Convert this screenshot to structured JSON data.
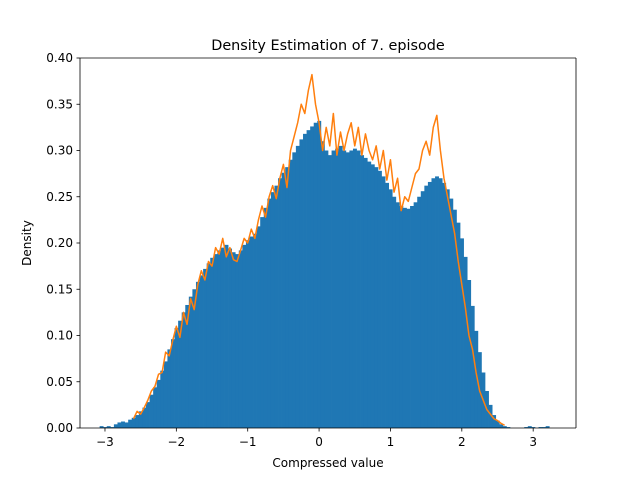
{
  "chart_data": {
    "type": "bar",
    "title": "Density Estimation of 7. episode",
    "xlabel": "Compressed value",
    "ylabel": "Density",
    "xlim": [
      -3.35,
      3.6
    ],
    "ylim": [
      0,
      0.4
    ],
    "xticks": [
      -3,
      -2,
      -1,
      0,
      1,
      2,
      3
    ],
    "xtick_labels": [
      "−3",
      "−2",
      "−1",
      "0",
      "1",
      "2",
      "3"
    ],
    "yticks": [
      0.0,
      0.05,
      0.1,
      0.15,
      0.2,
      0.25,
      0.3,
      0.35,
      0.4
    ],
    "ytick_labels": [
      "0.00",
      "0.05",
      "0.10",
      "0.15",
      "0.20",
      "0.25",
      "0.30",
      "0.35",
      "0.40"
    ],
    "grid": false,
    "colors": {
      "histogram": "#1f77b4",
      "density_line": "#ff7f0e"
    },
    "series": [
      {
        "kind": "histogram",
        "bin_width": 0.05,
        "x": [
          -3.05,
          -3.0,
          -2.95,
          -2.9,
          -2.85,
          -2.8,
          -2.75,
          -2.7,
          -2.65,
          -2.6,
          -2.55,
          -2.5,
          -2.45,
          -2.4,
          -2.35,
          -2.3,
          -2.25,
          -2.2,
          -2.15,
          -2.1,
          -2.05,
          -2.0,
          -1.95,
          -1.9,
          -1.85,
          -1.8,
          -1.75,
          -1.7,
          -1.65,
          -1.6,
          -1.55,
          -1.5,
          -1.45,
          -1.4,
          -1.35,
          -1.3,
          -1.25,
          -1.2,
          -1.15,
          -1.1,
          -1.05,
          -1.0,
          -0.95,
          -0.9,
          -0.85,
          -0.8,
          -0.75,
          -0.7,
          -0.65,
          -0.6,
          -0.55,
          -0.5,
          -0.45,
          -0.4,
          -0.35,
          -0.3,
          -0.25,
          -0.2,
          -0.15,
          -0.1,
          -0.05,
          0.0,
          0.05,
          0.1,
          0.15,
          0.2,
          0.25,
          0.3,
          0.35,
          0.4,
          0.45,
          0.5,
          0.55,
          0.6,
          0.65,
          0.7,
          0.75,
          0.8,
          0.85,
          0.9,
          0.95,
          1.0,
          1.05,
          1.1,
          1.15,
          1.2,
          1.25,
          1.3,
          1.35,
          1.4,
          1.45,
          1.5,
          1.55,
          1.6,
          1.65,
          1.7,
          1.75,
          1.8,
          1.85,
          1.9,
          1.95,
          2.0,
          2.05,
          2.1,
          2.15,
          2.2,
          2.25,
          2.3,
          2.35,
          2.4,
          2.45,
          2.5,
          2.55,
          2.6,
          2.65,
          2.7,
          2.75,
          2.8,
          2.85,
          2.9,
          2.95,
          3.0,
          3.05,
          3.1,
          3.15,
          3.2,
          3.25
        ],
        "values": [
          0.002,
          0.001,
          0.002,
          0.001,
          0.004,
          0.006,
          0.007,
          0.006,
          0.009,
          0.011,
          0.014,
          0.018,
          0.022,
          0.028,
          0.036,
          0.044,
          0.052,
          0.062,
          0.072,
          0.085,
          0.096,
          0.108,
          0.116,
          0.125,
          0.133,
          0.142,
          0.15,
          0.158,
          0.165,
          0.172,
          0.178,
          0.184,
          0.188,
          0.192,
          0.195,
          0.198,
          0.194,
          0.19,
          0.188,
          0.192,
          0.198,
          0.203,
          0.207,
          0.21,
          0.218,
          0.228,
          0.238,
          0.248,
          0.255,
          0.262,
          0.27,
          0.276,
          0.282,
          0.29,
          0.298,
          0.305,
          0.312,
          0.318,
          0.322,
          0.326,
          0.33,
          0.332,
          0.31,
          0.3,
          0.295,
          0.3,
          0.302,
          0.305,
          0.3,
          0.298,
          0.3,
          0.302,
          0.3,
          0.295,
          0.292,
          0.288,
          0.285,
          0.282,
          0.278,
          0.272,
          0.265,
          0.258,
          0.25,
          0.244,
          0.24,
          0.238,
          0.237,
          0.24,
          0.244,
          0.25,
          0.256,
          0.262,
          0.266,
          0.27,
          0.272,
          0.27,
          0.265,
          0.258,
          0.248,
          0.236,
          0.222,
          0.205,
          0.185,
          0.16,
          0.132,
          0.105,
          0.082,
          0.06,
          0.04,
          0.025,
          0.014,
          0.008,
          0.004,
          0.002,
          0.001,
          0.0,
          0.0,
          0.0,
          0.0,
          0.001,
          0.002,
          0.001,
          0.0,
          0.001,
          0.001,
          0.002
        ]
      },
      {
        "kind": "density_line",
        "x": [
          -2.6,
          -2.55,
          -2.5,
          -2.45,
          -2.4,
          -2.35,
          -2.3,
          -2.25,
          -2.2,
          -2.15,
          -2.1,
          -2.05,
          -2.0,
          -1.95,
          -1.9,
          -1.85,
          -1.8,
          -1.75,
          -1.7,
          -1.65,
          -1.6,
          -1.55,
          -1.5,
          -1.45,
          -1.4,
          -1.35,
          -1.3,
          -1.25,
          -1.2,
          -1.15,
          -1.1,
          -1.05,
          -1.0,
          -0.95,
          -0.9,
          -0.85,
          -0.8,
          -0.75,
          -0.7,
          -0.65,
          -0.6,
          -0.55,
          -0.5,
          -0.45,
          -0.4,
          -0.35,
          -0.3,
          -0.25,
          -0.2,
          -0.15,
          -0.1,
          -0.05,
          0.0,
          0.05,
          0.1,
          0.15,
          0.2,
          0.25,
          0.3,
          0.35,
          0.4,
          0.45,
          0.5,
          0.55,
          0.6,
          0.65,
          0.7,
          0.75,
          0.8,
          0.85,
          0.9,
          0.95,
          1.0,
          1.05,
          1.1,
          1.15,
          1.2,
          1.25,
          1.3,
          1.35,
          1.4,
          1.45,
          1.5,
          1.55,
          1.6,
          1.65,
          1.7,
          1.75,
          1.8,
          1.85,
          1.9,
          1.95,
          2.0,
          2.05,
          2.1,
          2.15,
          2.2,
          2.25,
          2.3,
          2.35,
          2.4,
          2.45,
          2.5,
          2.55,
          2.6
        ],
        "values": [
          0.01,
          0.018,
          0.015,
          0.022,
          0.03,
          0.04,
          0.045,
          0.058,
          0.06,
          0.082,
          0.078,
          0.095,
          0.11,
          0.098,
          0.125,
          0.112,
          0.14,
          0.128,
          0.155,
          0.17,
          0.16,
          0.18,
          0.175,
          0.195,
          0.188,
          0.205,
          0.185,
          0.195,
          0.182,
          0.18,
          0.192,
          0.205,
          0.2,
          0.215,
          0.205,
          0.225,
          0.24,
          0.228,
          0.25,
          0.262,
          0.248,
          0.27,
          0.285,
          0.26,
          0.3,
          0.315,
          0.33,
          0.35,
          0.34,
          0.365,
          0.382,
          0.35,
          0.33,
          0.3,
          0.325,
          0.305,
          0.34,
          0.295,
          0.32,
          0.3,
          0.318,
          0.33,
          0.305,
          0.325,
          0.295,
          0.318,
          0.3,
          0.29,
          0.305,
          0.28,
          0.3,
          0.268,
          0.29,
          0.255,
          0.27,
          0.235,
          0.25,
          0.245,
          0.26,
          0.275,
          0.28,
          0.3,
          0.31,
          0.295,
          0.325,
          0.338,
          0.3,
          0.27,
          0.25,
          0.23,
          0.21,
          0.18,
          0.155,
          0.13,
          0.1,
          0.085,
          0.06,
          0.04,
          0.03,
          0.02,
          0.015,
          0.01,
          0.008,
          0.005,
          0.003
        ]
      }
    ]
  }
}
